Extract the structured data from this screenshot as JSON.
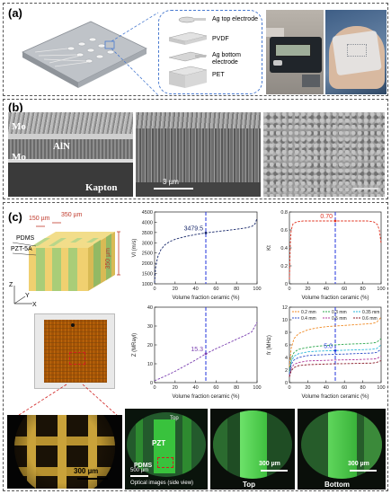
{
  "panel_a": {
    "label": "(a)",
    "layers": [
      "Ag top electrode",
      "PVDF",
      "Ag bottom electrode",
      "PET"
    ]
  },
  "panel_b": {
    "label": "(b)",
    "sem1_labels": [
      "Mo",
      "AlN",
      "Mo",
      "Kapton"
    ],
    "sem2_scale": "3 µm"
  },
  "panel_c": {
    "label": "(c)",
    "schematic": {
      "dim_top_1": "150 µm",
      "dim_top_2": "350 µm",
      "dim_side": "350 µm",
      "materials": [
        "PDMS",
        "PZT-5A"
      ],
      "axes": [
        "Z",
        "Y",
        "X"
      ]
    },
    "charts": [
      {
        "type": "line",
        "ylabel": "Vl (m/s)",
        "xlabel": "Volume fraction ceramic (%)",
        "xlim": [
          0,
          100
        ],
        "ylim": [
          1000,
          4500
        ],
        "yticks": [
          1000,
          1500,
          2000,
          2500,
          3000,
          3500,
          4000,
          4500
        ],
        "xticks": [
          0,
          20,
          40,
          60,
          80,
          100
        ],
        "annotation": "3479.5",
        "marker_x": 50,
        "series": [
          {
            "color": "#1a2a6c",
            "x": [
              0,
              1,
              3,
              6,
              10,
              15,
              20,
              30,
              40,
              50,
              60,
              70,
              80,
              90,
              95,
              98,
              100
            ],
            "y": [
              1050,
              1800,
              2300,
              2650,
              2900,
              3060,
              3170,
              3300,
              3400,
              3480,
              3540,
              3600,
              3660,
              3730,
              3800,
              3920,
              4200
            ]
          }
        ]
      },
      {
        "type": "line",
        "ylabel": "Kt",
        "xlabel": "Volume fraction ceramic (%)",
        "xlim": [
          0,
          100
        ],
        "ylim": [
          0,
          0.8
        ],
        "yticks": [
          0.0,
          0.2,
          0.4,
          0.6,
          0.8
        ],
        "xticks": [
          0,
          20,
          40,
          60,
          80,
          100
        ],
        "annotation": "0.70",
        "marker_x": 50,
        "series": [
          {
            "color": "#e0301e",
            "x": [
              0,
              1,
              2,
              4,
              8,
              15,
              30,
              50,
              70,
              85,
              92,
              96,
              98,
              100
            ],
            "y": [
              0.05,
              0.45,
              0.6,
              0.67,
              0.69,
              0.7,
              0.7,
              0.7,
              0.7,
              0.7,
              0.69,
              0.66,
              0.6,
              0.45
            ]
          }
        ]
      },
      {
        "type": "line",
        "ylabel": "Z (MRayl)",
        "xlabel": "Volume fraction ceramic (%)",
        "xlim": [
          0,
          100
        ],
        "ylim": [
          0,
          40
        ],
        "yticks": [
          0,
          10,
          20,
          30,
          40
        ],
        "xticks": [
          0,
          20,
          40,
          60,
          80,
          100
        ],
        "annotation": "15.3",
        "marker_x": 50,
        "series": [
          {
            "color": "#7a3fb0",
            "x": [
              0,
              10,
              20,
              30,
              40,
              50,
              60,
              70,
              80,
              90,
              95,
              100
            ],
            "y": [
              1,
              3.4,
              6,
              9,
              12,
              15.3,
              18,
              20.5,
              23,
              25.5,
              27,
              32
            ]
          }
        ]
      },
      {
        "type": "line",
        "ylabel": "fr (MHz)",
        "xlabel": "Volume fraction ceramic (%)",
        "xlim": [
          0,
          100
        ],
        "ylim": [
          0,
          12
        ],
        "yticks": [
          0,
          2,
          4,
          6,
          8,
          10,
          12
        ],
        "xticks": [
          0,
          20,
          40,
          60,
          80,
          100
        ],
        "annotation": "5.0",
        "marker_x": 50,
        "legend": [
          "0.2 mm",
          "0.3 mm",
          "0.35 mm",
          "0.4 mm",
          "0.5 mm",
          "0.6 mm"
        ],
        "series": [
          {
            "name": "0.2 mm",
            "color": "#f08a24",
            "x": [
              0,
              2,
              5,
              10,
              20,
              30,
              40,
              50,
              60,
              70,
              80,
              90,
              95,
              100
            ],
            "y": [
              2.5,
              5.5,
              7.0,
              7.8,
              8.4,
              8.7,
              8.9,
              9.0,
              9.1,
              9.2,
              9.3,
              9.4,
              9.6,
              10.4
            ]
          },
          {
            "name": "0.3 mm",
            "color": "#2fa84f",
            "x": [
              0,
              2,
              5,
              10,
              20,
              30,
              40,
              50,
              60,
              70,
              80,
              90,
              95,
              100
            ],
            "y": [
              1.8,
              3.8,
              4.8,
              5.3,
              5.6,
              5.8,
              5.9,
              6.0,
              6.1,
              6.15,
              6.2,
              6.3,
              6.4,
              7.0
            ]
          },
          {
            "name": "0.35 mm",
            "color": "#29b6d8",
            "x": [
              0,
              2,
              5,
              10,
              20,
              30,
              40,
              50,
              60,
              70,
              80,
              90,
              95,
              100
            ],
            "y": [
              1.5,
              3.3,
              4.2,
              4.6,
              4.9,
              5.0,
              5.05,
              5.1,
              5.15,
              5.2,
              5.25,
              5.3,
              5.4,
              6.0
            ]
          },
          {
            "name": "0.4 mm",
            "color": "#3050c8",
            "x": [
              0,
              2,
              5,
              10,
              20,
              30,
              40,
              50,
              60,
              70,
              80,
              90,
              95,
              100
            ],
            "y": [
              1.3,
              2.9,
              3.6,
              4.0,
              4.3,
              4.4,
              4.45,
              4.5,
              4.55,
              4.6,
              4.65,
              4.7,
              4.8,
              5.3
            ]
          },
          {
            "name": "0.5 mm",
            "color": "#b03a9a",
            "x": [
              0,
              2,
              5,
              10,
              20,
              30,
              40,
              50,
              60,
              70,
              80,
              90,
              95,
              100
            ],
            "y": [
              1.0,
              2.3,
              2.9,
              3.2,
              3.45,
              3.5,
              3.55,
              3.6,
              3.62,
              3.65,
              3.7,
              3.75,
              3.8,
              4.2
            ]
          },
          {
            "name": "0.6 mm",
            "color": "#8a1c2a",
            "x": [
              0,
              2,
              5,
              10,
              20,
              30,
              40,
              50,
              60,
              70,
              80,
              90,
              95,
              100
            ],
            "y": [
              0.9,
              1.9,
              2.4,
              2.7,
              2.85,
              2.9,
              2.95,
              3.0,
              3.02,
              3.05,
              3.08,
              3.1,
              3.2,
              3.5
            ]
          }
        ]
      }
    ],
    "micro": {
      "grid_scale": "300 µm",
      "side_view_scale": "500 µm",
      "side_view_label_top": "Top",
      "side_view_pzt": "PZT",
      "side_view_pdms": "PDMS",
      "side_view_caption": "Optical images (side view)",
      "top_label": "Top",
      "top_scale": "300 µm",
      "bottom_label": "Bottom",
      "bottom_scale": "300 µm"
    }
  }
}
